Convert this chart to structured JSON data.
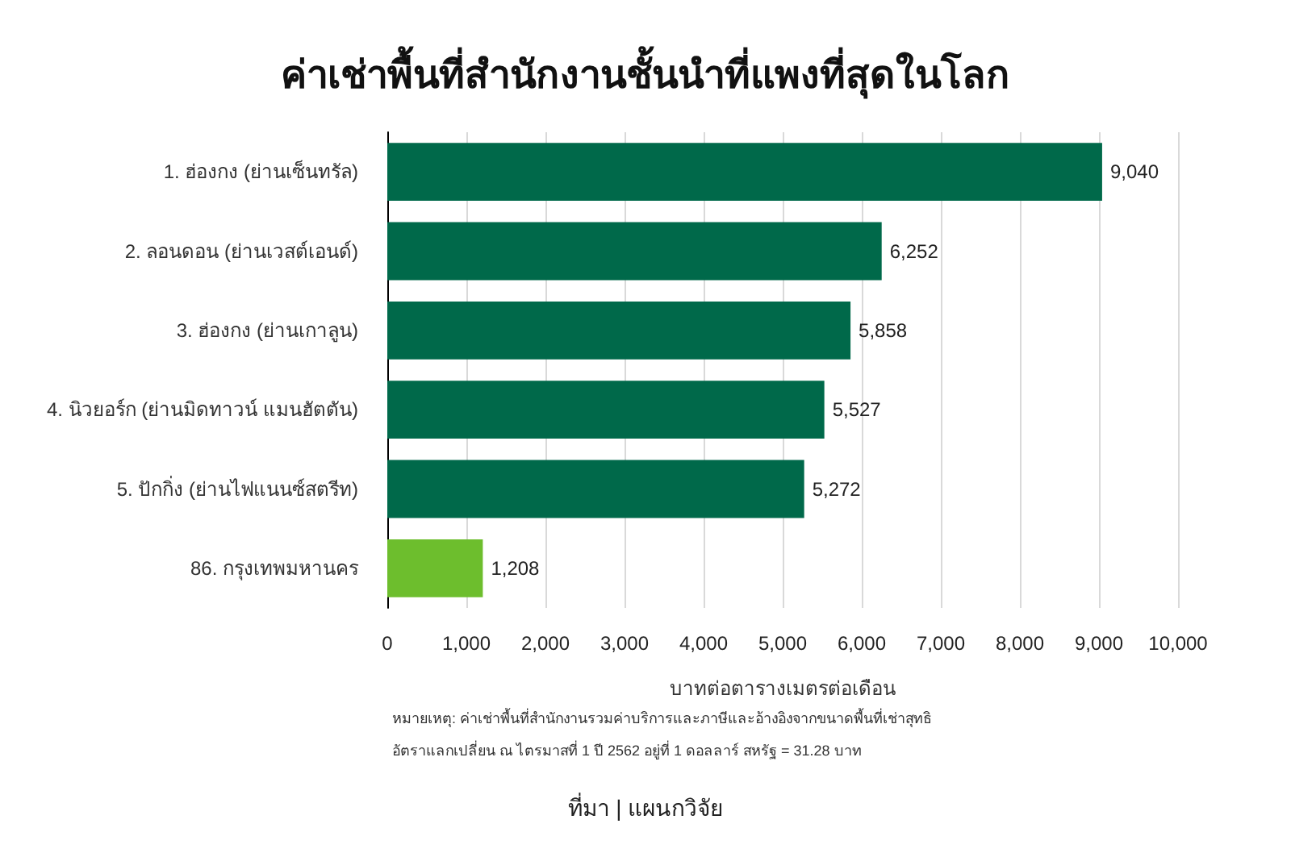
{
  "chart_data": {
    "type": "bar",
    "orientation": "horizontal",
    "title": "ค่าเช่าพื้นที่สำนักงานชั้นนำที่แพงที่สุดในโลก",
    "categories": [
      "1. ฮ่องกง (ย่านเซ็นทรัล)",
      "2. ลอนดอน (ย่านเวสต์เอนด์)",
      "3. ฮ่องกง (ย่านเกาลูน)",
      "4. นิวยอร์ก (ย่านมิดทาวน์ แมนฮัตตัน)",
      "5. ปักกิ่ง (ย่านไฟแนนซ์สตรีท)",
      "86. กรุงเทพมหานคร"
    ],
    "values": [
      9040,
      6252,
      5858,
      5527,
      5272,
      1208
    ],
    "colors": [
      "#00694a",
      "#00694a",
      "#00694a",
      "#00694a",
      "#00694a",
      "#6dbe2d"
    ],
    "value_labels": [
      "9,040",
      "6,252",
      "5,858",
      "5,527",
      "5,272",
      "1,208"
    ],
    "xlabel": "บาทต่อตารางเมตรต่อเดือน",
    "xlim": [
      0,
      10000
    ],
    "xticks": [
      0,
      {
        "value": 1000,
        "label": "1,000"
      },
      {
        "value": 2000,
        "label": "2,000"
      },
      {
        "value": 3000,
        "label": "3,000"
      },
      {
        "value": 4000,
        "label": "4,000"
      },
      {
        "value": 5000,
        "label": "5,000"
      },
      {
        "value": 6000,
        "label": "6,000"
      },
      {
        "value": 7000,
        "label": "7,000"
      },
      {
        "value": 8000,
        "label": "8,000"
      },
      {
        "value": 9000,
        "label": "9,000"
      },
      {
        "value": 10000,
        "label": "10,000"
      }
    ],
    "grid": "x",
    "annotations": [
      "หมายเหตุ: ค่าเช่าพื้นที่สำนักงานรวมค่าบริการและภาษีและอ้างอิงจากขนาดพื้นที่เช่าสุทธิ",
      "อัตราแลกเปลี่ยน ณ ไตรมาสที่ 1 ปี 2562 อยู่ที่ 1 ดอลลาร์ สหรัฐ = 31.28 บาท",
      "ที่มา | แผนกวิจัย"
    ]
  }
}
